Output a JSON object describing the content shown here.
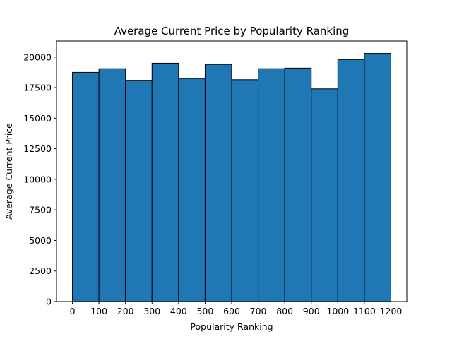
{
  "chart_data": {
    "type": "bar",
    "title": "Average Current Price by Popularity Ranking",
    "xlabel": "Popularity Ranking",
    "ylabel": "Average Current Price",
    "bin_edges": [
      0,
      100,
      200,
      300,
      400,
      500,
      600,
      700,
      800,
      900,
      1000,
      1100,
      1200
    ],
    "values": [
      18750,
      19050,
      18100,
      19500,
      18250,
      19400,
      18150,
      19050,
      19100,
      17400,
      19800,
      20300
    ],
    "xticks": [
      0,
      100,
      200,
      300,
      400,
      500,
      600,
      700,
      800,
      900,
      1000,
      1100,
      1200
    ],
    "yticks": [
      0,
      2500,
      5000,
      7500,
      10000,
      12500,
      15000,
      17500,
      20000
    ],
    "xlim": [
      -60,
      1260
    ],
    "ylim": [
      0,
      21315
    ],
    "bar_color": "#1f77b4",
    "edge_color": "#000000",
    "grid": false,
    "legend": "none"
  }
}
